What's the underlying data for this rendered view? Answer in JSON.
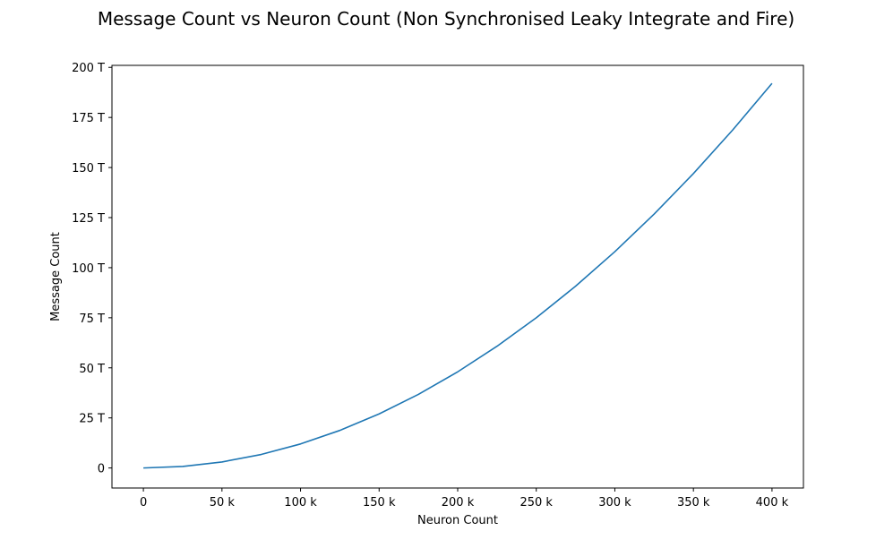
{
  "chart_data": {
    "type": "line",
    "title": "Message Count vs Neuron Count (Non Synchronised Leaky Integrate and Fire)",
    "xlabel": "Neuron Count",
    "ylabel": "Message Count",
    "x_ticks": [
      0,
      50000,
      100000,
      150000,
      200000,
      250000,
      300000,
      350000,
      400000
    ],
    "x_tick_labels": [
      "0",
      "50 k",
      "100 k",
      "150 k",
      "200 k",
      "250 k",
      "300 k",
      "350 k",
      "400 k"
    ],
    "y_ticks": [
      0,
      25000000000000.0,
      50000000000000.0,
      75000000000000.0,
      100000000000000.0,
      125000000000000.0,
      150000000000000.0,
      175000000000000.0,
      200000000000000.0
    ],
    "y_tick_labels": [
      "0",
      "25 T",
      "50 T",
      "75 T",
      "100 T",
      "125 T",
      "150 T",
      "175 T",
      "200 T"
    ],
    "xlim": [
      -20000,
      420000
    ],
    "ylim": [
      -10000000000000.0,
      201000000000000.0
    ],
    "grid": false,
    "series": [
      {
        "color": "#1f77b4",
        "x": [
          0,
          25000,
          50000,
          75000,
          100000,
          125000,
          150000,
          175000,
          200000,
          225000,
          250000,
          275000,
          300000,
          325000,
          350000,
          375000,
          400000
        ],
        "y": [
          0,
          750000000000.0,
          3000000000000.0,
          6750000000000.0,
          12000000000000.0,
          18750000000000.0,
          27000000000000.0,
          36750000000000.0,
          48000000000000.0,
          60750000000000.0,
          75000000000000.0,
          90750000000000.0,
          108000000000000.0,
          126750000000000.0,
          147000000000000.0,
          168750000000000.0,
          192000000000000.0
        ]
      }
    ]
  }
}
